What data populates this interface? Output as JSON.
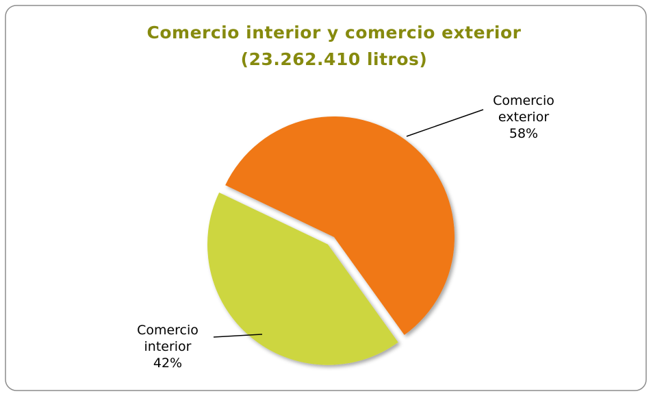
{
  "chart_data": {
    "type": "pie",
    "title": "Comercio interior y comercio exterior",
    "subtitle": "(23.262.410 litros)",
    "categories": [
      "Comercio interior",
      "Comercio exterior"
    ],
    "values": [
      42,
      58
    ],
    "value_labels": [
      "42%",
      "58%"
    ],
    "colors": [
      "#cdd63f",
      "#f07812"
    ]
  }
}
